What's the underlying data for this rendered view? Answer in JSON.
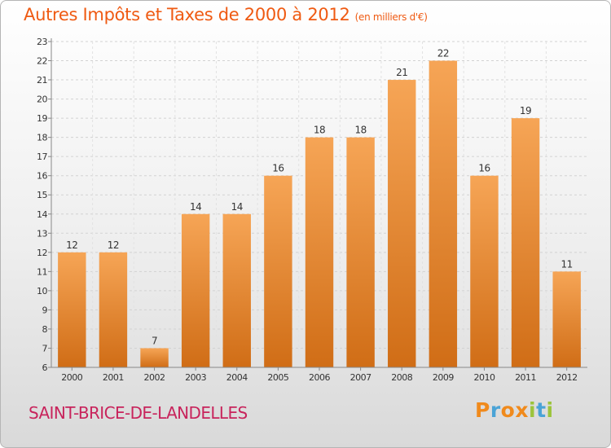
{
  "chart_data": {
    "type": "bar",
    "title": "Autres Impôts et Taxes de 2000 à 2012",
    "unit_note": "(en milliers d'€)",
    "categories": [
      "2000",
      "2001",
      "2002",
      "2003",
      "2004",
      "2005",
      "2006",
      "2007",
      "2008",
      "2009",
      "2010",
      "2011",
      "2012"
    ],
    "values": [
      12,
      12,
      7,
      14,
      14,
      16,
      18,
      18,
      21,
      22,
      16,
      19,
      11
    ],
    "ylim": [
      6,
      23
    ],
    "yticks": [
      6,
      7,
      8,
      9,
      10,
      11,
      12,
      13,
      14,
      15,
      16,
      17,
      18,
      19,
      20,
      21,
      22,
      23
    ],
    "grid": true,
    "bar_color_top": "#f6a556",
    "bar_color_bottom": "#d06d16"
  },
  "footer": {
    "city": "SAINT-BRICE-DE-LANDELLES",
    "logo_letters": [
      "P",
      "r",
      "o",
      "x",
      "i",
      "t",
      "i"
    ],
    "logo_colors": [
      "#f08a1c",
      "#4aa3d6",
      "#f08a1c",
      "#f08a1c",
      "#9cc43c",
      "#4aa3d6",
      "#9cc43c"
    ]
  },
  "colors": {
    "title": "#ef5a12",
    "city": "#c8245c"
  }
}
